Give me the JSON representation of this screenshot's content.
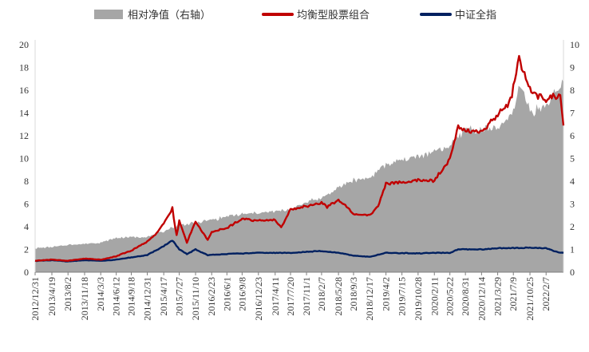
{
  "colors": {
    "area": "#a6a6a6",
    "portfolio": "#c00000",
    "index": "#002060",
    "axis": "#7f7f7f",
    "text": "#333333"
  },
  "chart_data": {
    "type": "line",
    "title": "",
    "legend": {
      "placement": "top",
      "entries": [
        {
          "name": "相对净值（右轴）",
          "style": "area",
          "color": "#a6a6a6"
        },
        {
          "name": "均衡型股票组合",
          "style": "line",
          "color": "#c00000"
        },
        {
          "name": "中证全指",
          "style": "line",
          "color": "#002060"
        }
      ]
    },
    "y_left": {
      "range": [
        0,
        20
      ],
      "ticks": [
        0,
        2,
        4,
        6,
        8,
        10,
        12,
        14,
        16,
        18,
        20
      ]
    },
    "y_right": {
      "range": [
        0,
        10
      ],
      "ticks": [
        0,
        1,
        2,
        3,
        4,
        5,
        6,
        7,
        8,
        9,
        10
      ]
    },
    "x_range": [
      "2012-12-31",
      "2022-05-31"
    ],
    "x_ticks": [
      "2012/12/31",
      "2013/4/19",
      "2013/8/2",
      "2013/11/18",
      "2014/3/3",
      "2014/6/12",
      "2014/9/18",
      "2014/12/31",
      "2015/4/17",
      "2015/7/27",
      "2015/11/10",
      "2016/2/23",
      "2016/6/1",
      "2016/9/8",
      "2016/12/23",
      "2017/4/11",
      "2017/7/20",
      "2017/11/1",
      "2018/2/7",
      "2018/5/28",
      "2018/9/3",
      "2018/12/17",
      "2019/4/2",
      "2019/7/15",
      "2019/10/28",
      "2020/2/11",
      "2020/5/22",
      "2020/8/31",
      "2020/12/14",
      "2021/3/29",
      "2021/7/9",
      "2021/10/25",
      "2022/2/7"
    ],
    "grid": false,
    "series": [
      {
        "name": "相对净值（右轴）",
        "type": "area",
        "axis": "right",
        "x": [
          "2012-12-31",
          "2013-04-19",
          "2013-08-02",
          "2013-11-18",
          "2014-03-03",
          "2014-06-12",
          "2014-09-18",
          "2014-12-31",
          "2015-04-17",
          "2015-07-27",
          "2015-11-10",
          "2016-02-23",
          "2016-06-01",
          "2016-09-08",
          "2016-12-23",
          "2017-04-11",
          "2017-07-20",
          "2017-11-01",
          "2018-02-07",
          "2018-05-28",
          "2018-09-03",
          "2018-12-17",
          "2019-04-02",
          "2019-07-15",
          "2019-10-28",
          "2020-02-11",
          "2020-05-22",
          "2020-08-31",
          "2020-12-14",
          "2021-03-29",
          "2021-07-09",
          "2021-08-20",
          "2021-10-25",
          "2022-02-07",
          "2022-05-31"
        ],
        "values": [
          1.05,
          1.1,
          1.2,
          1.25,
          1.3,
          1.5,
          1.55,
          1.55,
          1.8,
          2.1,
          2.15,
          2.3,
          2.45,
          2.55,
          2.6,
          2.65,
          2.75,
          3.1,
          3.25,
          3.7,
          4.05,
          4.15,
          4.7,
          4.9,
          5.1,
          5.35,
          5.5,
          6.3,
          6.25,
          6.3,
          7.0,
          8.3,
          7.05,
          7.3,
          8.35
        ]
      },
      {
        "name": "均衡型股票组合",
        "type": "line",
        "axis": "left",
        "x": [
          "2012-12-31",
          "2013-04-19",
          "2013-08-02",
          "2013-11-18",
          "2014-03-03",
          "2014-06-12",
          "2014-09-18",
          "2014-12-31",
          "2015-02-20",
          "2015-04-17",
          "2015-06-12",
          "2015-07-10",
          "2015-07-27",
          "2015-09-15",
          "2015-11-10",
          "2016-01-28",
          "2016-02-23",
          "2016-06-01",
          "2016-09-08",
          "2016-12-23",
          "2017-04-11",
          "2017-05-20",
          "2017-07-20",
          "2017-11-01",
          "2018-02-07",
          "2018-03-15",
          "2018-05-28",
          "2018-09-03",
          "2018-12-17",
          "2019-02-10",
          "2019-04-02",
          "2019-07-15",
          "2019-10-28",
          "2020-02-11",
          "2020-05-22",
          "2020-07-15",
          "2020-08-31",
          "2020-12-14",
          "2021-03-29",
          "2021-06-20",
          "2021-08-15",
          "2021-10-25",
          "2022-02-07",
          "2022-05-10",
          "2022-05-31"
        ],
        "values": [
          1.0,
          1.1,
          1.0,
          1.2,
          1.1,
          1.4,
          1.9,
          2.7,
          3.3,
          4.3,
          5.6,
          3.2,
          4.5,
          2.6,
          4.5,
          2.8,
          3.5,
          3.9,
          4.7,
          4.5,
          4.6,
          3.9,
          5.5,
          5.8,
          6.1,
          5.7,
          6.4,
          5.1,
          5.0,
          5.8,
          7.8,
          7.9,
          8.1,
          8.0,
          10.0,
          12.9,
          12.3,
          12.4,
          13.8,
          15.1,
          18.8,
          16.0,
          15.2,
          15.6,
          12.9
        ]
      },
      {
        "name": "中证全指",
        "type": "line",
        "axis": "left",
        "x": [
          "2012-12-31",
          "2013-04-19",
          "2013-08-02",
          "2013-11-18",
          "2014-03-03",
          "2014-06-12",
          "2014-09-18",
          "2014-12-31",
          "2015-04-17",
          "2015-06-12",
          "2015-07-27",
          "2015-09-15",
          "2015-11-10",
          "2016-01-28",
          "2016-06-01",
          "2016-12-23",
          "2017-07-20",
          "2018-01-24",
          "2018-05-28",
          "2018-09-03",
          "2018-12-17",
          "2019-04-02",
          "2019-10-28",
          "2020-02-11",
          "2020-05-22",
          "2020-07-15",
          "2020-12-14",
          "2021-03-29",
          "2021-10-25",
          "2022-02-07",
          "2022-04-26",
          "2022-05-31"
        ],
        "values": [
          1.0,
          1.05,
          0.95,
          1.05,
          1.0,
          1.1,
          1.3,
          1.5,
          2.3,
          2.8,
          2.0,
          1.6,
          2.0,
          1.5,
          1.6,
          1.7,
          1.7,
          1.85,
          1.7,
          1.45,
          1.35,
          1.7,
          1.65,
          1.7,
          1.7,
          2.0,
          2.0,
          2.1,
          2.15,
          2.1,
          1.75,
          1.7
        ]
      }
    ]
  }
}
